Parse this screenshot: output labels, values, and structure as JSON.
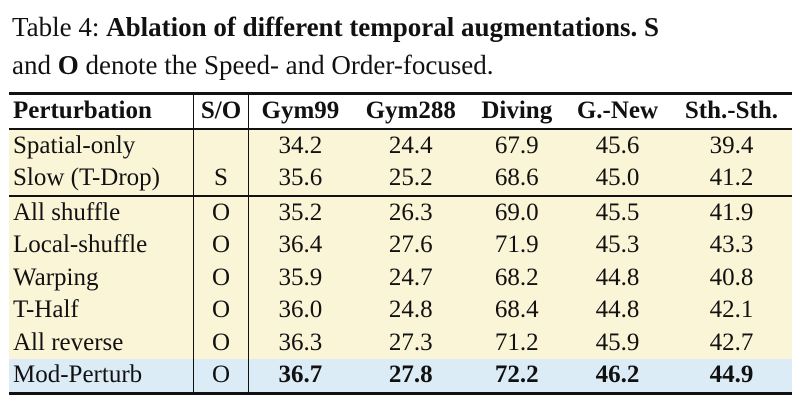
{
  "caption": {
    "label": "Table 4: ",
    "bold": "Ablation of different temporal augmentations. S",
    "line2_pre": "and ",
    "line2_bold": "O",
    "line2_post": " denote the Speed- and Order-focused."
  },
  "table": {
    "headers": [
      "Perturbation",
      "S/O",
      "Gym99",
      "Gym288",
      "Diving",
      "G.-New",
      "Sth.-Sth."
    ],
    "rows": [
      {
        "name": "Spatial-only",
        "so": "",
        "values": [
          "34.2",
          "24.4",
          "67.9",
          "45.6",
          "39.4"
        ]
      },
      {
        "name": "Slow (T-Drop)",
        "so": "S",
        "values": [
          "35.6",
          "25.2",
          "68.6",
          "45.0",
          "41.2"
        ]
      },
      {
        "name": "All shuffle",
        "so": "O",
        "values": [
          "35.2",
          "26.3",
          "69.0",
          "45.5",
          "41.9"
        ]
      },
      {
        "name": "Local-shuffle",
        "so": "O",
        "values": [
          "36.4",
          "27.6",
          "71.9",
          "45.3",
          "43.3"
        ]
      },
      {
        "name": "Warping",
        "so": "O",
        "values": [
          "35.9",
          "24.7",
          "68.2",
          "44.8",
          "40.8"
        ]
      },
      {
        "name": "T-Half",
        "so": "O",
        "values": [
          "36.0",
          "24.8",
          "68.4",
          "44.8",
          "42.1"
        ]
      },
      {
        "name": "All reverse",
        "so": "O",
        "values": [
          "36.3",
          "27.3",
          "71.2",
          "45.9",
          "42.7"
        ]
      },
      {
        "name": "Mod-Perturb",
        "so": "O",
        "values": [
          "36.7",
          "27.8",
          "72.2",
          "46.2",
          "44.9"
        ]
      }
    ]
  },
  "colors": {
    "row_bg": "#fbf5d8",
    "highlight_bg": "#dcecf6"
  }
}
